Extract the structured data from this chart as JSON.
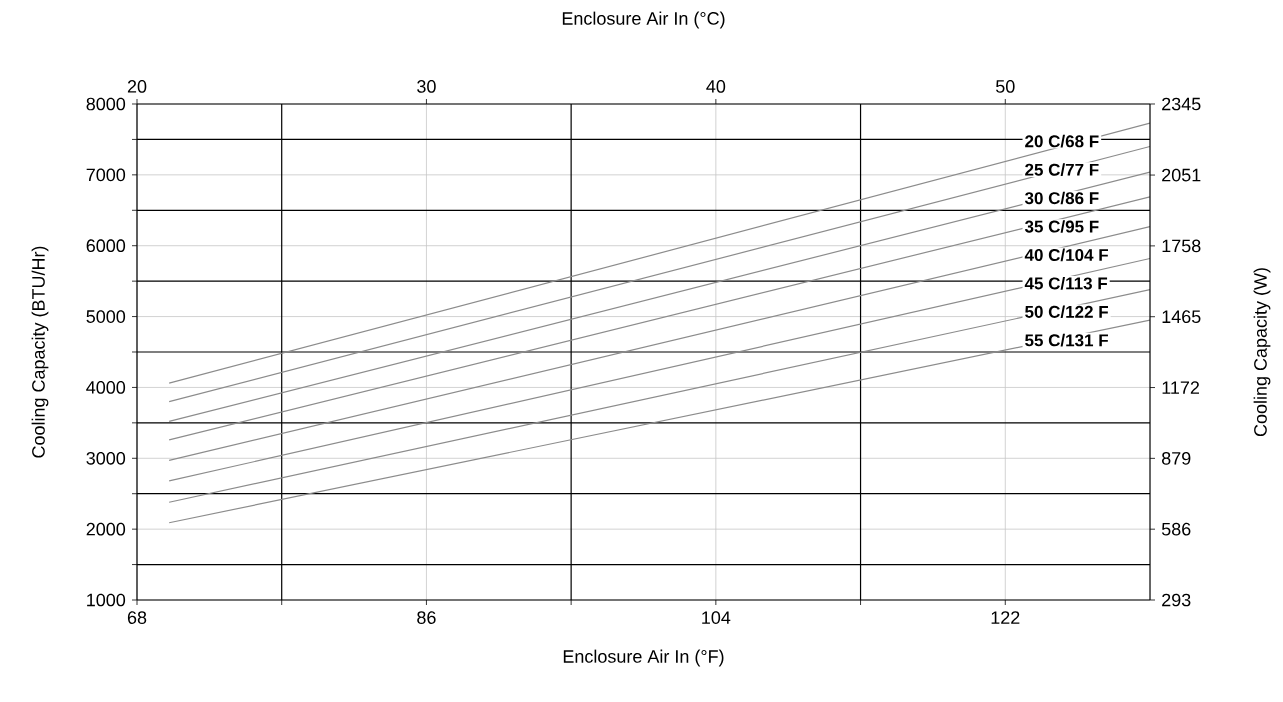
{
  "chart_data": {
    "type": "line",
    "xlabel": "Enclosure Air In (°F)",
    "x2label": "Enclosure Air In (°C)",
    "ylabel": "Cooling Capacity (BTU/Hr)",
    "y2label": "Cooling Capacity (W)",
    "xlim": [
      68,
      131
    ],
    "xticks": [
      68,
      {
        "value": 77,
        "label": null
      },
      86,
      {
        "value": 95,
        "label": null
      },
      104,
      {
        "value": 113,
        "label": null
      },
      122
    ],
    "x2lim": [
      20,
      55
    ],
    "x2ticks": [
      20,
      30,
      40,
      50
    ],
    "ylim": [
      1000,
      8000
    ],
    "yticks": [
      1000,
      {
        "value": 1500,
        "label": null
      },
      2000,
      {
        "value": 2500,
        "label": null
      },
      3000,
      {
        "value": 3500,
        "label": null
      },
      4000,
      {
        "value": 4500,
        "label": null
      },
      5000,
      {
        "value": 5500,
        "label": null
      },
      6000,
      {
        "value": 6500,
        "label": null
      },
      7000,
      {
        "value": 7500,
        "label": null
      },
      8000
    ],
    "y2lim": [
      293,
      2345
    ],
    "y2ticks": [
      293,
      586,
      879,
      1172,
      1465,
      1758,
      2051,
      2345
    ],
    "grid": true,
    "legend": false,
    "marker": "none",
    "line_style": "solid",
    "x": [
      70,
      131
    ],
    "series": [
      {
        "name": "20 C/68 F",
        "color": "#8c8c8c",
        "values": [
          4060,
          7730
        ]
      },
      {
        "name": "25 C/77 F",
        "color": "#8c8c8c",
        "values": [
          3800,
          7400
        ]
      },
      {
        "name": "30 C/86 F",
        "color": "#8c8c8c",
        "values": [
          3520,
          7040
        ]
      },
      {
        "name": "35 C/95 F",
        "color": "#8c8c8c",
        "values": [
          3260,
          6690
        ]
      },
      {
        "name": "40 C/104 F",
        "color": "#8c8c8c",
        "values": [
          2970,
          6270
        ]
      },
      {
        "name": "45 C/113 F",
        "color": "#8c8c8c",
        "values": [
          2680,
          5820
        ]
      },
      {
        "name": "50 C/122 F",
        "color": "#8c8c8c",
        "values": [
          2380,
          5380
        ]
      },
      {
        "name": "55 C/131 F",
        "color": "#8c8c8c",
        "values": [
          2090,
          4950
        ]
      }
    ]
  }
}
